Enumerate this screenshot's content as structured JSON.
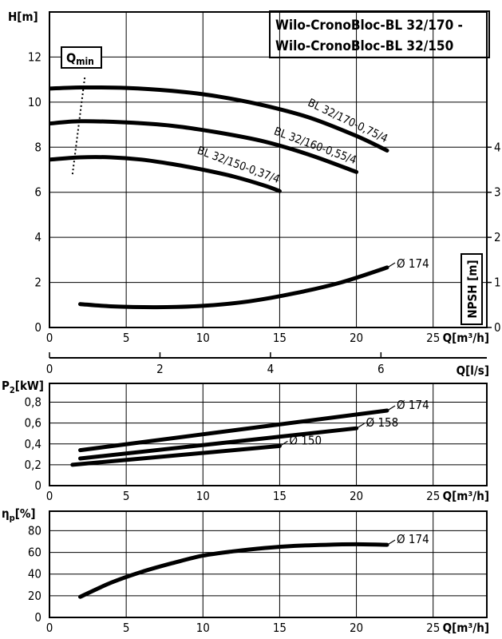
{
  "title": {
    "line1": "Wilo-CronoBloc-BL 32/170 -",
    "line2": "Wilo-CronoBloc-BL 32/150"
  },
  "qmin_label": {
    "main": "Q",
    "sub": "min"
  },
  "chart_data": [
    {
      "name": "head",
      "type": "line",
      "ylabel": "H[m]",
      "xlabel": "Q[m³/h]",
      "xlim": [
        0,
        28.5
      ],
      "ylim": [
        0,
        14
      ],
      "xticks": [
        0,
        5,
        10,
        15,
        20,
        25
      ],
      "yticks": [
        0,
        2,
        4,
        6,
        8,
        10,
        12
      ],
      "secondary_x": {
        "label": "Q[l/s]",
        "ticks": [
          0,
          2,
          4,
          6
        ],
        "unit_ratio": 3.6
      },
      "secondary_y": {
        "label": "NPSH [m]",
        "ticks": [
          0,
          1,
          2,
          3,
          4
        ],
        "scale": 2
      },
      "series": [
        {
          "name": "BL 32/170-0,75/4",
          "x": [
            0,
            2,
            5,
            8,
            11,
            14,
            17,
            20,
            22
          ],
          "y": [
            10.6,
            10.65,
            10.63,
            10.5,
            10.25,
            9.85,
            9.3,
            8.5,
            7.85
          ]
        },
        {
          "name": "BL 32/160-0,55/4",
          "x": [
            0,
            2,
            5,
            8,
            11,
            14,
            17,
            20
          ],
          "y": [
            9.05,
            9.15,
            9.1,
            8.95,
            8.65,
            8.25,
            7.65,
            6.9
          ]
        },
        {
          "name": "BL 32/150-0,37/4",
          "x": [
            0,
            2,
            4,
            6,
            8,
            10,
            12,
            14,
            15
          ],
          "y": [
            7.45,
            7.55,
            7.55,
            7.45,
            7.25,
            7.0,
            6.7,
            6.3,
            6.05
          ]
        },
        {
          "name": "Ø 174",
          "axis": "NPSH",
          "x": [
            2,
            4,
            7,
            10,
            13,
            16,
            19,
            22
          ],
          "y": [
            0.52,
            0.47,
            0.45,
            0.48,
            0.58,
            0.76,
            1.0,
            1.33
          ]
        }
      ],
      "qmin_line": {
        "x": [
          1.5,
          2.3
        ],
        "y": [
          6.8,
          11.1
        ]
      }
    },
    {
      "name": "power",
      "type": "line",
      "ylabel_main": "P",
      "ylabel_sub": "2",
      "ylabel_unit": "[kW]",
      "xlabel": "Q[m³/h]",
      "xlim": [
        0,
        28.5
      ],
      "ylim": [
        0,
        0.98
      ],
      "xticks": [
        0,
        5,
        10,
        15,
        20,
        25
      ],
      "yticks": [
        0,
        0.2,
        0.4,
        0.6,
        0.8
      ],
      "ytick_labels": [
        "0",
        "0,2",
        "0,4",
        "0,6",
        "0,8"
      ],
      "series": [
        {
          "name": "Ø 174",
          "x": [
            2,
            22
          ],
          "y": [
            0.34,
            0.72
          ]
        },
        {
          "name": "Ø 158",
          "x": [
            2,
            20
          ],
          "y": [
            0.26,
            0.55
          ]
        },
        {
          "name": "Ø 150",
          "x": [
            1.5,
            15
          ],
          "y": [
            0.2,
            0.38
          ]
        }
      ]
    },
    {
      "name": "efficiency",
      "type": "line",
      "ylabel_main": "η",
      "ylabel_sub": "p",
      "ylabel_unit": "[%]",
      "xlabel": "Q[m³/h]",
      "xlim": [
        0,
        28.5
      ],
      "ylim": [
        0,
        98
      ],
      "xticks": [
        0,
        5,
        10,
        15,
        20,
        25
      ],
      "yticks": [
        0,
        20,
        40,
        60,
        80
      ],
      "series": [
        {
          "name": "Ø 174",
          "x": [
            2,
            4,
            6,
            8,
            10,
            12,
            14,
            16,
            18,
            20,
            22
          ],
          "y": [
            19,
            32,
            42,
            50,
            57,
            61,
            64,
            66,
            67,
            67.5,
            67
          ]
        }
      ]
    }
  ]
}
